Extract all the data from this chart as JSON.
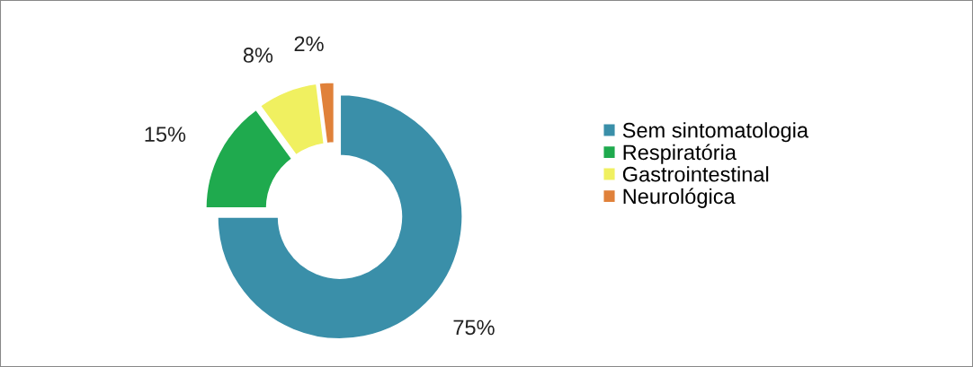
{
  "chart_data": {
    "type": "donut",
    "categories": [
      "Sem sintomatologia",
      "Respiratória",
      "Gastrointestinal",
      "Neurológica"
    ],
    "values": [
      75,
      15,
      8,
      2
    ],
    "colors": [
      "#3a8fa9",
      "#1faa4e",
      "#f0f060",
      "#e0813a"
    ],
    "value_labels": [
      "75%",
      "15%",
      "8%",
      "2%"
    ],
    "legend": "right"
  }
}
